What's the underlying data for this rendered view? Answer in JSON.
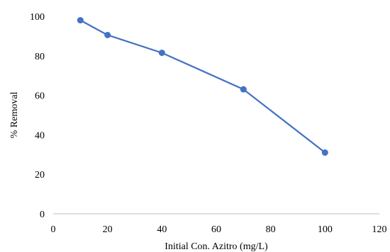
{
  "chart_data": {
    "type": "line",
    "title": "",
    "xlabel": "Initial Con. Azitro (mg/L)",
    "ylabel": "% Removal",
    "xlim": [
      0,
      120
    ],
    "ylim": [
      0,
      100
    ],
    "x_ticks": [
      0,
      20,
      40,
      60,
      80,
      100,
      120
    ],
    "y_ticks": [
      0,
      20,
      40,
      60,
      80,
      100
    ],
    "grid": false,
    "legend": "none",
    "series": [
      {
        "color": "#4472C4",
        "x": [
          10,
          20,
          40,
          70,
          100
        ],
        "y": [
          98,
          90.5,
          81.5,
          63,
          31
        ]
      }
    ]
  }
}
